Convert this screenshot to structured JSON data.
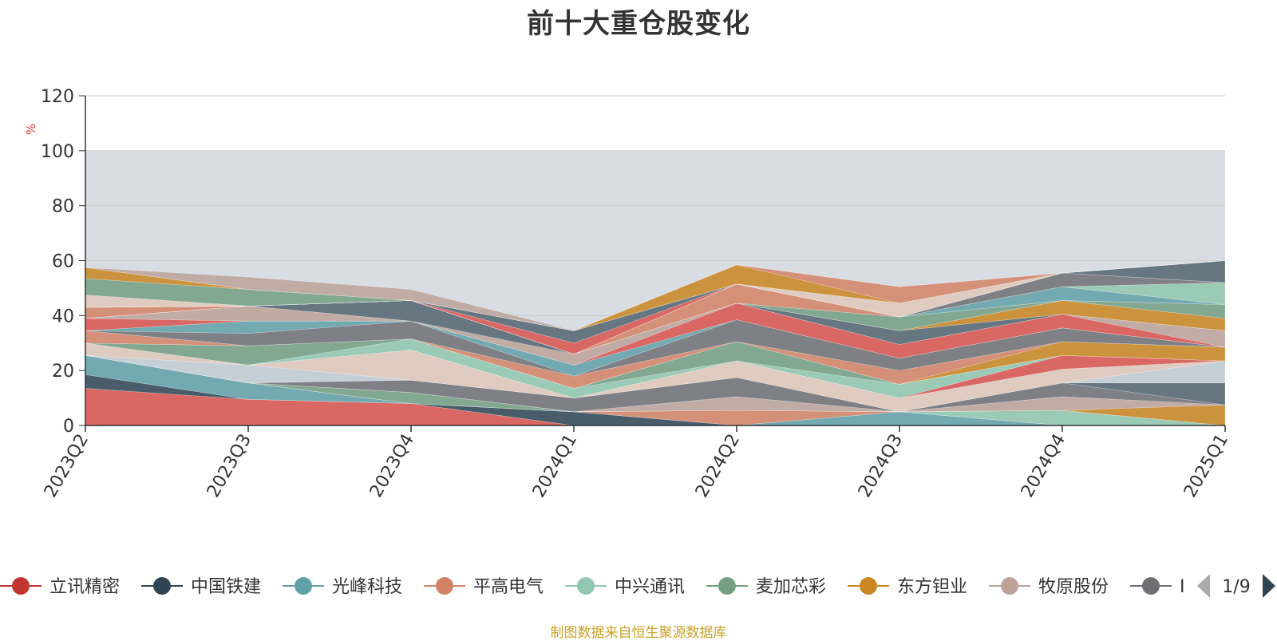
{
  "chart_data": {
    "type": "area",
    "title": "前十大重仓股变化",
    "ylabel": "%",
    "ylim": [
      0,
      120
    ],
    "yticks": [
      0,
      20,
      40,
      60,
      80,
      100,
      120
    ],
    "x": [
      "2023Q2",
      "2023Q3",
      "2023Q4",
      "2024Q1",
      "2024Q2",
      "2024Q3",
      "2024Q4",
      "2025Q1"
    ],
    "stacked": true,
    "grid": true,
    "band": [
      0,
      100
    ],
    "legend_position": "bottom",
    "legend_page": "1/9",
    "series": [
      {
        "name": "立讯精密",
        "color": "#d9534f",
        "values": [
          13.5,
          9.5,
          8,
          0,
          0,
          0,
          0,
          0
        ]
      },
      {
        "name": "中国铁建",
        "color": "#2f4554",
        "values": [
          5,
          0,
          0,
          5,
          0,
          0,
          0,
          0
        ]
      },
      {
        "name": "光峰科技",
        "color": "#61a0a8",
        "values": [
          7,
          6,
          0,
          0,
          0,
          5,
          0,
          0
        ]
      },
      {
        "name": "平高电气",
        "color": "#d48265",
        "values": [
          0,
          0,
          0,
          0,
          5.5,
          0,
          0,
          0
        ]
      },
      {
        "name": "中兴通讯",
        "color": "#91c7ae",
        "values": [
          0,
          0,
          0,
          0,
          0,
          0,
          5.5,
          0
        ]
      },
      {
        "name": "麦加芯彩",
        "color": "#749f83",
        "values": [
          0,
          0,
          4,
          0,
          0,
          0,
          0,
          0
        ]
      },
      {
        "name": "东方钽业",
        "color": "#ca8622",
        "values": [
          0,
          0,
          0,
          0,
          0,
          0,
          0,
          7.5
        ]
      },
      {
        "name": "牧原股份",
        "color": "#bda29a",
        "values": [
          0,
          0,
          0,
          0,
          5,
          0,
          5,
          0
        ]
      },
      {
        "name": "",
        "color": "#6e7074",
        "values": [
          0,
          0,
          4.5,
          5,
          7,
          0,
          5,
          0
        ]
      },
      {
        "name": "",
        "color": "#546570",
        "values": [
          0,
          0,
          0,
          0,
          0,
          0,
          0,
          8
        ]
      },
      {
        "name": "",
        "color": "#c4ccd3",
        "values": [
          0,
          6.5,
          0,
          0,
          0,
          0,
          0,
          8
        ]
      },
      {
        "name": "",
        "color": "#e0c8b8",
        "values": [
          4.5,
          0,
          11,
          0,
          6,
          5,
          5,
          0
        ]
      },
      {
        "name": "",
        "color": "#d9534f",
        "values": [
          0,
          0,
          0,
          0,
          0,
          0,
          5,
          0
        ]
      },
      {
        "name": "",
        "color": "#91c7ae",
        "values": [
          0,
          0,
          4,
          3.5,
          0,
          5,
          0,
          0
        ]
      },
      {
        "name": "",
        "color": "#749f83",
        "values": [
          0,
          7,
          0,
          0,
          7,
          0,
          0,
          0
        ]
      },
      {
        "name": "",
        "color": "#ca8622",
        "values": [
          0,
          0,
          0,
          0,
          0,
          0,
          5,
          5
        ]
      },
      {
        "name": "",
        "color": "#d48265",
        "values": [
          4.5,
          0,
          0,
          4.5,
          0,
          5,
          0,
          0
        ]
      },
      {
        "name": "",
        "color": "#6e7074",
        "values": [
          0,
          4.5,
          6.5,
          0,
          8,
          4.5,
          5,
          0
        ]
      },
      {
        "name": "",
        "color": "#61a0a8",
        "values": [
          0,
          4.5,
          0,
          4,
          0,
          0,
          0,
          0
        ]
      },
      {
        "name": "",
        "color": "#d9534f",
        "values": [
          4.5,
          0,
          0,
          0,
          6,
          5,
          5,
          0
        ]
      },
      {
        "name": "",
        "color": "#bda29a",
        "values": [
          0,
          5.5,
          0,
          4,
          0,
          0,
          0,
          6
        ]
      },
      {
        "name": "",
        "color": "#546570",
        "values": [
          0,
          0,
          7.5,
          0,
          0,
          5,
          0,
          0
        ]
      },
      {
        "name": "",
        "color": "#ca8622",
        "values": [
          0,
          0,
          0,
          0,
          0,
          0,
          5,
          4.5
        ]
      },
      {
        "name": "",
        "color": "#749f83",
        "values": [
          0,
          0,
          0,
          0,
          0,
          5,
          0,
          5
        ]
      },
      {
        "name": "",
        "color": "#d48265",
        "values": [
          4,
          0,
          0,
          0,
          7,
          0,
          0,
          0
        ]
      },
      {
        "name": "",
        "color": "#61a0a8",
        "values": [
          0,
          0,
          0,
          0,
          0,
          0,
          5,
          0
        ]
      },
      {
        "name": "",
        "color": "#91c7ae",
        "values": [
          0,
          0,
          0,
          0,
          0,
          0,
          0,
          8
        ]
      },
      {
        "name": "",
        "color": "#6e7074",
        "values": [
          0,
          0,
          0,
          0,
          0,
          0,
          5,
          0
        ]
      },
      {
        "name": "",
        "color": "#d9534f",
        "values": [
          0,
          0,
          0,
          4,
          0,
          0,
          0,
          0
        ]
      },
      {
        "name": "",
        "color": "#546570",
        "values": [
          0,
          0,
          0,
          4.5,
          0,
          0,
          0,
          8
        ]
      },
      {
        "name": "",
        "color": "#e0c8b8",
        "values": [
          4.5,
          0,
          0,
          0,
          0,
          5,
          0,
          0
        ]
      },
      {
        "name": "",
        "color": "#749f83",
        "values": [
          6,
          6,
          0,
          0,
          0,
          0,
          0,
          0
        ]
      },
      {
        "name": "",
        "color": "#ca8622",
        "values": [
          4,
          0,
          0,
          0,
          7,
          0,
          0,
          0
        ]
      },
      {
        "name": "",
        "color": "#d48265",
        "values": [
          0,
          0,
          0,
          0,
          0,
          6,
          0,
          0
        ]
      },
      {
        "name": "",
        "color": "#bda29a",
        "values": [
          0,
          4.5,
          4,
          0,
          0,
          0,
          0,
          0
        ]
      }
    ]
  },
  "legend": {
    "items": [
      {
        "label": "立讯精密",
        "color": "#c23531"
      },
      {
        "label": "中国铁建",
        "color": "#2f4554"
      },
      {
        "label": "光峰科技",
        "color": "#61a0a8"
      },
      {
        "label": "平高电气",
        "color": "#d48265"
      },
      {
        "label": "中兴通讯",
        "color": "#91c7ae"
      },
      {
        "label": "麦加芯彩",
        "color": "#749f83"
      },
      {
        "label": "东方钽业",
        "color": "#ca8622"
      },
      {
        "label": "牧原股份",
        "color": "#bda29a"
      },
      {
        "label": "",
        "color": "#6e7074"
      }
    ],
    "page": "1/9",
    "truncated_label": "I"
  },
  "footer": {
    "text": "制图数据来自恒生聚源数据库",
    "color": "#c9a227"
  },
  "colors": {
    "band": "#d8dde4",
    "axis": "#333333",
    "grid": "#cccccc",
    "ylabel": "#e03030"
  }
}
